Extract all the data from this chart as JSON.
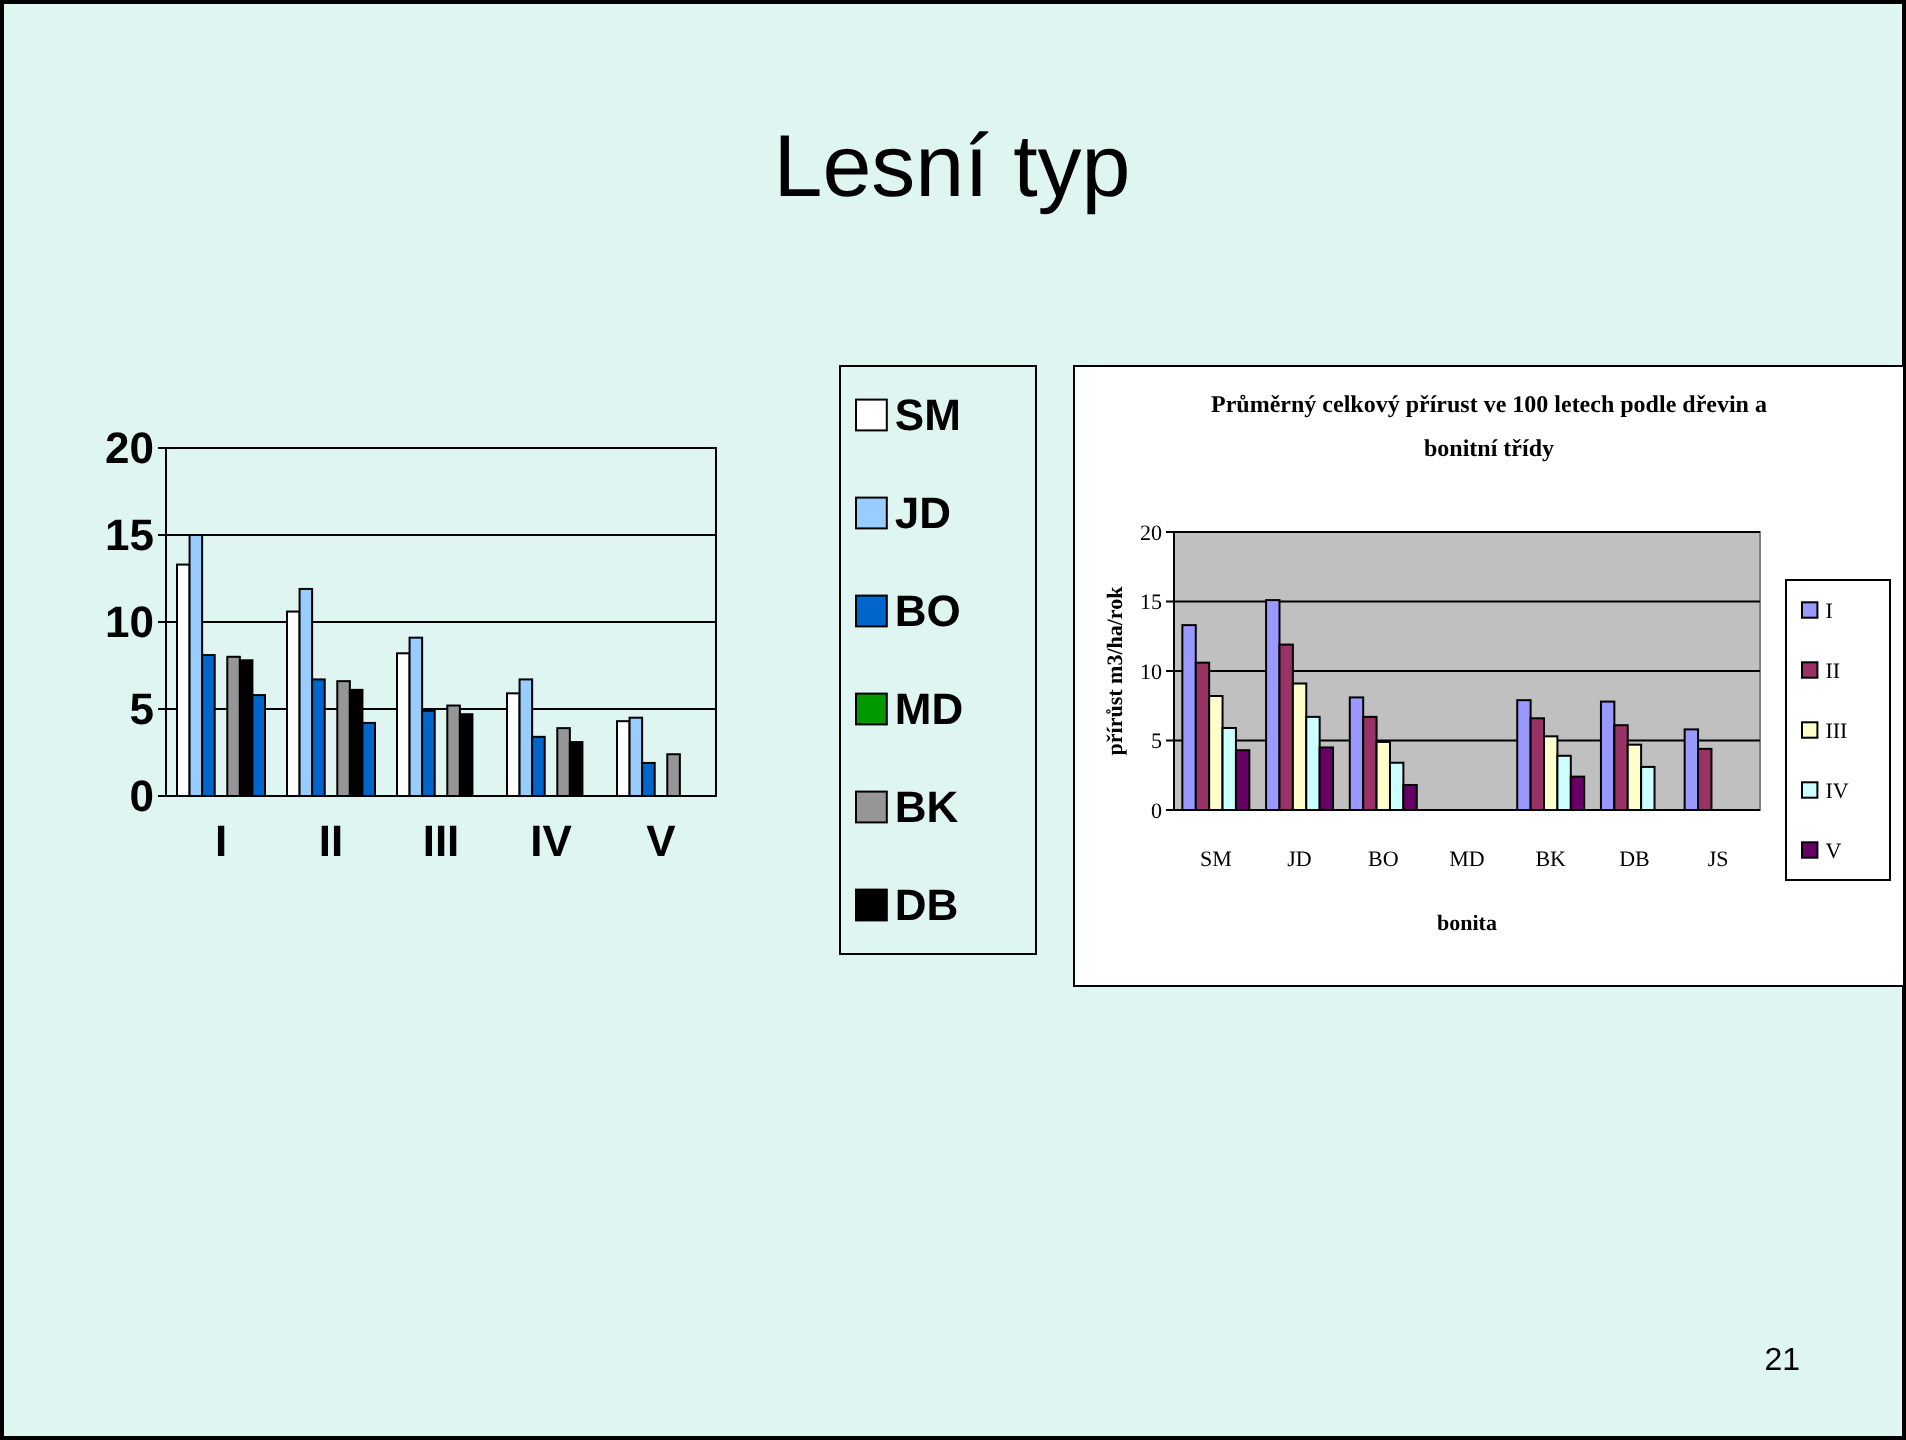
{
  "chart_data": [
    {
      "type": "bar",
      "categories": [
        "I",
        "II",
        "III",
        "IV",
        "V"
      ],
      "ylim": [
        0,
        20
      ],
      "yticks": [
        0,
        5,
        10,
        15,
        20
      ],
      "grid": "y",
      "legend": "right",
      "annotations": [
        "Lesní typ"
      ],
      "series": [
        {
          "name": "SM",
          "color": "#ffffff",
          "values": [
            13.3,
            10.6,
            8.2,
            5.9,
            4.3
          ]
        },
        {
          "name": "JD",
          "color": "#99ccff",
          "values": [
            15,
            11.9,
            9.1,
            6.7,
            4.5
          ]
        },
        {
          "name": "BO",
          "color": "#0066cc",
          "values": [
            8.1,
            6.7,
            4.9,
            3.4,
            1.9
          ]
        },
        {
          "name": "MD",
          "color": "#009900",
          "values": [
            null,
            null,
            null,
            null,
            null
          ]
        },
        {
          "name": "BK",
          "color": "#969696",
          "values": [
            8,
            6.6,
            5.2,
            3.9,
            2.4
          ]
        },
        {
          "name": "DB",
          "color": "#000000",
          "values": [
            7.8,
            6.1,
            4.7,
            3.1,
            null
          ]
        },
        {
          "color": "#0066cc",
          "values": [
            5.8,
            4.2,
            null,
            null,
            null
          ]
        }
      ]
    },
    {
      "type": "bar",
      "title": "Průměrný celkový přírust ve 100 letech podle dřevin a bonitní třídy",
      "xlabel": "bonita",
      "ylabel": "přírůst m3/ha/rok",
      "categories": [
        "SM",
        "JD",
        "BO",
        "MD",
        "BK",
        "DB",
        "JS"
      ],
      "ylim": [
        0,
        20
      ],
      "yticks": [
        0,
        5,
        10,
        15,
        20
      ],
      "grid": "y",
      "legend": "right",
      "annotations": [
        "21"
      ],
      "series": [
        {
          "name": "I",
          "color": "#9999ff",
          "values": [
            13.3,
            15.1,
            8.1,
            null,
            7.9,
            7.8,
            5.8
          ]
        },
        {
          "name": "II",
          "color": "#993366",
          "values": [
            10.6,
            11.9,
            6.7,
            null,
            6.6,
            6.1,
            4.4
          ]
        },
        {
          "name": "III",
          "color": "#ffffcc",
          "values": [
            8.2,
            9.1,
            4.9,
            null,
            5.3,
            4.7,
            null
          ]
        },
        {
          "name": "IV",
          "color": "#ccffff",
          "values": [
            5.9,
            6.7,
            3.4,
            null,
            3.9,
            3.1,
            null
          ]
        },
        {
          "name": "V",
          "color": "#660066",
          "values": [
            4.3,
            4.5,
            1.8,
            null,
            2.4,
            null,
            null
          ]
        }
      ]
    }
  ]
}
